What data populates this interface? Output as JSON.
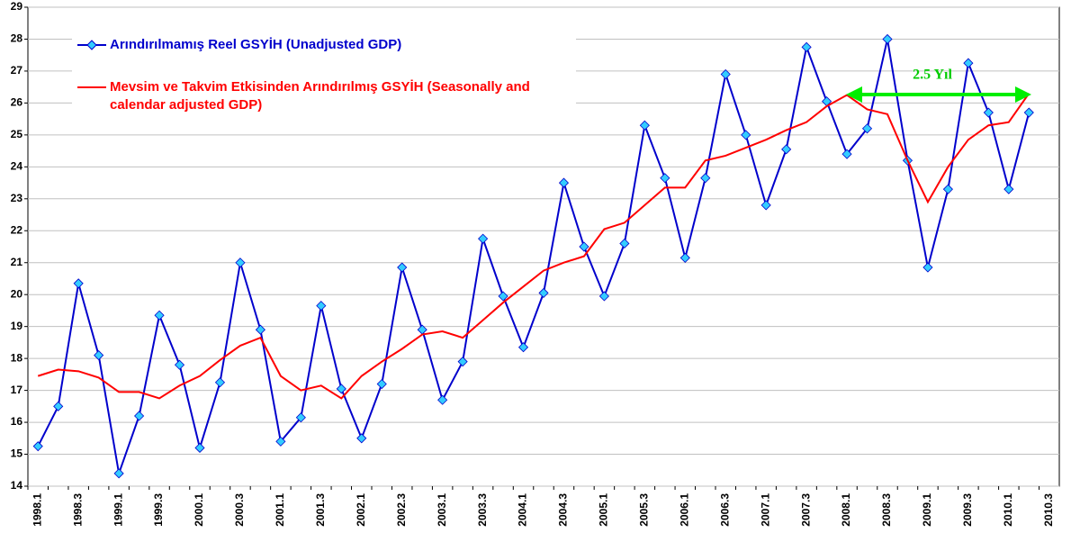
{
  "chart_data": {
    "type": "line",
    "categories": [
      "1998.1",
      null,
      "1998.3",
      null,
      "1999.1",
      null,
      "1999.3",
      null,
      "2000.1",
      null,
      "2000.3",
      null,
      "2001.1",
      null,
      "2001.3",
      null,
      "2002.1",
      null,
      "2002.3",
      null,
      "2003.1",
      null,
      "2003.3",
      null,
      "2004.1",
      null,
      "2004.3",
      null,
      "2005.1",
      null,
      "2005.3",
      null,
      "2006.1",
      null,
      "2006.3",
      null,
      "2007.1",
      null,
      "2007.3",
      null,
      "2008.1",
      null,
      "2008.3",
      null,
      "2009.1",
      null,
      "2009.3",
      null,
      "2010.1",
      null,
      "2010.3"
    ],
    "series": [
      {
        "name": "Arındırılmamış Reel GSYİH (Unadjusted GDP)",
        "color": "#0000cc",
        "marker_color": "#33ccff",
        "values": [
          15.25,
          16.5,
          20.35,
          18.1,
          14.4,
          16.2,
          19.35,
          17.8,
          15.2,
          17.25,
          21.0,
          18.9,
          15.4,
          16.15,
          19.65,
          17.05,
          15.5,
          17.2,
          20.85,
          18.9,
          16.7,
          17.9,
          21.75,
          19.95,
          18.35,
          20.05,
          23.5,
          21.5,
          19.95,
          21.6,
          25.3,
          23.65,
          21.15,
          23.65,
          26.9,
          25.0,
          22.8,
          24.55,
          27.75,
          26.05,
          24.4,
          25.2,
          28.0,
          24.2,
          20.85,
          23.3,
          27.25,
          25.7,
          23.3,
          25.7,
          null
        ]
      },
      {
        "name": "Mevsim ve Takvim Etkisinden Arındırılmış GSYİH (Seasonally and calendar adjusted GDP)",
        "color": "#ff0000",
        "values": [
          17.45,
          17.65,
          17.6,
          17.4,
          16.95,
          16.95,
          16.75,
          17.15,
          17.45,
          17.95,
          18.4,
          18.65,
          17.45,
          17.0,
          17.15,
          16.75,
          17.45,
          17.9,
          18.3,
          18.75,
          18.85,
          18.65,
          19.2,
          19.75,
          20.25,
          20.75,
          21.0,
          21.2,
          22.05,
          22.25,
          22.8,
          23.35,
          23.35,
          24.2,
          24.35,
          24.6,
          24.85,
          25.15,
          25.4,
          25.9,
          26.25,
          25.8,
          25.65,
          24.2,
          22.9,
          24.0,
          24.85,
          25.3,
          25.4,
          26.3,
          null
        ]
      }
    ],
    "annotation": "2.5 Yıl",
    "ylim": [
      14,
      29
    ],
    "yticks": [
      14,
      15,
      16,
      17,
      18,
      19,
      20,
      21,
      22,
      23,
      24,
      25,
      26,
      27,
      28,
      29
    ],
    "grid": true
  }
}
